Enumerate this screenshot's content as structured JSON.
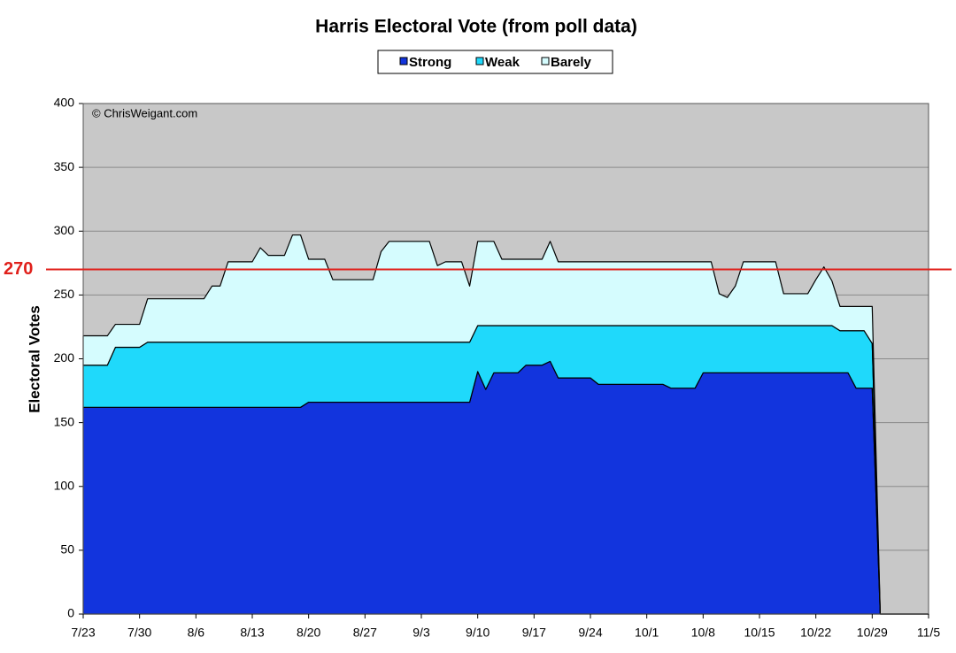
{
  "chart_data": {
    "type": "stacked_area",
    "title": "Harris Electoral Vote (from poll data)",
    "y_label": "Electoral Votes",
    "annotation": "© ChrisWeigant.com",
    "reference_line": {
      "value": 270,
      "label": "270",
      "color": "#e0201b"
    },
    "x": [
      0,
      3,
      4,
      7,
      8,
      15,
      16,
      17,
      18,
      21,
      22,
      23,
      25,
      26,
      27,
      28,
      30,
      31,
      36,
      37,
      38,
      43,
      44,
      45,
      47,
      48,
      49,
      50,
      51,
      52,
      54,
      55,
      57,
      58,
      59,
      63,
      64,
      72,
      73,
      76,
      77,
      78,
      79,
      80,
      81,
      82,
      86,
      87,
      90,
      91,
      92,
      93,
      94,
      95,
      96,
      97,
      98,
      99,
      105
    ],
    "series": [
      {
        "name": "Strong",
        "color": "#1234dd",
        "values": [
          162,
          162,
          162,
          162,
          162,
          162,
          162,
          162,
          162,
          162,
          162,
          162,
          162,
          162,
          162,
          166,
          166,
          166,
          166,
          166,
          166,
          166,
          166,
          166,
          166,
          166,
          190,
          176,
          189,
          189,
          189,
          195,
          195,
          198,
          185,
          185,
          180,
          180,
          177,
          177,
          189,
          189,
          189,
          189,
          189,
          189,
          189,
          189,
          189,
          189,
          189,
          189,
          189,
          189,
          177,
          177,
          177,
          0,
          0
        ]
      },
      {
        "name": "Weak",
        "color": "#1fd9fb",
        "values": [
          33,
          33,
          47,
          47,
          51,
          51,
          51,
          51,
          51,
          51,
          51,
          51,
          51,
          51,
          51,
          47,
          47,
          47,
          47,
          47,
          47,
          47,
          47,
          47,
          47,
          47,
          36,
          50,
          37,
          37,
          37,
          31,
          31,
          28,
          41,
          41,
          46,
          46,
          49,
          49,
          37,
          37,
          37,
          37,
          37,
          37,
          37,
          37,
          37,
          37,
          37,
          37,
          33,
          33,
          45,
          45,
          35,
          0,
          0
        ]
      },
      {
        "name": "Barely",
        "color": "#d5fcfe",
        "values": [
          23,
          23,
          18,
          18,
          34,
          34,
          44,
          44,
          63,
          63,
          74,
          68,
          68,
          84,
          84,
          65,
          65,
          49,
          49,
          71,
          79,
          79,
          60,
          63,
          63,
          44,
          66,
          66,
          66,
          52,
          52,
          52,
          52,
          66,
          50,
          50,
          50,
          50,
          50,
          50,
          50,
          50,
          25,
          22,
          31,
          50,
          50,
          25,
          25,
          36,
          46,
          35,
          19,
          19,
          19,
          19,
          29,
          0,
          0
        ]
      }
    ],
    "xlim": [
      0,
      105
    ],
    "xticks": [
      {
        "value": 0,
        "label": "7/23"
      },
      {
        "value": 7,
        "label": "7/30"
      },
      {
        "value": 14,
        "label": "8/6"
      },
      {
        "value": 21,
        "label": "8/13"
      },
      {
        "value": 28,
        "label": "8/20"
      },
      {
        "value": 35,
        "label": "8/27"
      },
      {
        "value": 42,
        "label": "9/3"
      },
      {
        "value": 49,
        "label": "9/10"
      },
      {
        "value": 56,
        "label": "9/17"
      },
      {
        "value": 63,
        "label": "9/24"
      },
      {
        "value": 70,
        "label": "10/1"
      },
      {
        "value": 77,
        "label": "10/8"
      },
      {
        "value": 84,
        "label": "10/15"
      },
      {
        "value": 91,
        "label": "10/22"
      },
      {
        "value": 98,
        "label": "10/29"
      },
      {
        "value": 105,
        "label": "11/5"
      }
    ],
    "ylim": [
      0,
      400
    ],
    "yticks": [
      0,
      50,
      100,
      150,
      200,
      250,
      300,
      350,
      400
    ],
    "grid": true,
    "legend": "top"
  }
}
